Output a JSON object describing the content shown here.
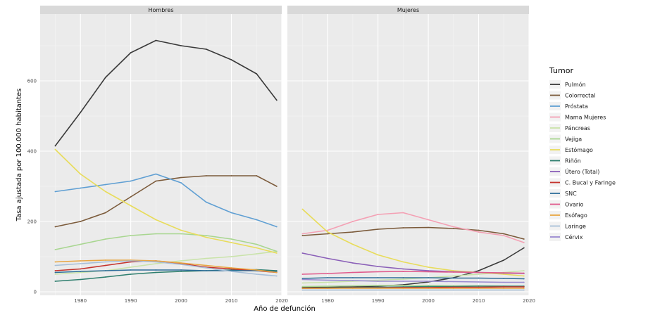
{
  "chart_data": {
    "type": "line",
    "xlabel": "Año de defunción",
    "ylabel": "Tasa ajustada por 100.000 habitantes",
    "xlim": [
      1972,
      2020
    ],
    "ylim": [
      -10,
      790
    ],
    "x_ticks": [
      1980,
      1990,
      2000,
      2010,
      2020
    ],
    "y_ticks": [
      0,
      200,
      400,
      600
    ],
    "grid": true,
    "legend_title": "Tumor",
    "legend_position": "right",
    "panels": [
      "Hombres",
      "Mujeres"
    ],
    "x": [
      1975,
      1980,
      1985,
      1990,
      1995,
      2000,
      2005,
      2010,
      2015,
      2019
    ],
    "series": [
      {
        "name": "Pulmón",
        "color": "#3a3a3a",
        "hombres": [
          415,
          510,
          610,
          680,
          715,
          700,
          690,
          660,
          620,
          545
        ],
        "mujeres": [
          13,
          13,
          14,
          16,
          20,
          28,
          40,
          60,
          90,
          125
        ]
      },
      {
        "name": "Colorrectal",
        "color": "#7b5a3a",
        "hombres": [
          185,
          200,
          225,
          270,
          315,
          325,
          330,
          330,
          330,
          300
        ],
        "mujeres": [
          160,
          165,
          170,
          178,
          182,
          183,
          180,
          175,
          165,
          150
        ]
      },
      {
        "name": "Próstata",
        "color": "#5f9fd3",
        "hombres": [
          285,
          295,
          305,
          315,
          335,
          310,
          255,
          225,
          205,
          185
        ],
        "mujeres": [
          null,
          null,
          null,
          null,
          null,
          null,
          null,
          null,
          null,
          null
        ]
      },
      {
        "name": "Mama Mujeres",
        "color": "#f4a0b4",
        "hombres": [
          null,
          null,
          null,
          null,
          null,
          null,
          null,
          null,
          null,
          null
        ],
        "mujeres": [
          165,
          175,
          200,
          220,
          225,
          205,
          185,
          170,
          160,
          140
        ]
      },
      {
        "name": "Páncreas",
        "color": "#c9e3a9",
        "hombres": [
          50,
          55,
          60,
          70,
          80,
          88,
          95,
          100,
          108,
          115
        ],
        "mujeres": [
          25,
          27,
          30,
          33,
          36,
          40,
          45,
          50,
          55,
          60
        ]
      },
      {
        "name": "Vejiga",
        "color": "#a8d690",
        "hombres": [
          120,
          135,
          150,
          160,
          165,
          165,
          160,
          150,
          135,
          115
        ],
        "mujeres": [
          15,
          16,
          17,
          18,
          18,
          18,
          17,
          17,
          16,
          15
        ]
      },
      {
        "name": "Estómago",
        "color": "#e8dc5a",
        "hombres": [
          405,
          335,
          285,
          245,
          205,
          175,
          155,
          140,
          125,
          110
        ],
        "mujeres": [
          235,
          170,
          135,
          105,
          85,
          70,
          60,
          55,
          50,
          45
        ]
      },
      {
        "name": "Riñón",
        "color": "#2e7e6e",
        "hombres": [
          30,
          35,
          42,
          50,
          55,
          58,
          60,
          62,
          63,
          60
        ],
        "mujeres": [
          10,
          11,
          12,
          13,
          14,
          15,
          15,
          16,
          16,
          16
        ]
      },
      {
        "name": "Útero (Total)",
        "color": "#8a5fb8",
        "hombres": [
          null,
          null,
          null,
          null,
          null,
          null,
          null,
          null,
          null,
          null
        ],
        "mujeres": [
          110,
          95,
          82,
          72,
          65,
          60,
          57,
          55,
          53,
          52
        ]
      },
      {
        "name": "C. Bucal y Faringe",
        "color": "#c4322c",
        "hombres": [
          60,
          65,
          75,
          85,
          88,
          80,
          70,
          65,
          60,
          55
        ],
        "mujeres": [
          10,
          10,
          11,
          11,
          12,
          12,
          13,
          13,
          14,
          14
        ]
      },
      {
        "name": "SNC",
        "color": "#2f6e9a",
        "hombres": [
          55,
          58,
          60,
          62,
          62,
          62,
          60,
          60,
          60,
          58
        ],
        "mujeres": [
          38,
          40,
          40,
          40,
          40,
          40,
          39,
          39,
          38,
          37
        ]
      },
      {
        "name": "Ovario",
        "color": "#e05a8c",
        "hombres": [
          null,
          null,
          null,
          null,
          null,
          null,
          null,
          null,
          null,
          null
        ],
        "mujeres": [
          50,
          52,
          55,
          57,
          58,
          57,
          56,
          55,
          54,
          53
        ]
      },
      {
        "name": "Esófago",
        "color": "#e8a642",
        "hombres": [
          85,
          88,
          90,
          90,
          88,
          82,
          75,
          68,
          62,
          55
        ],
        "mujeres": [
          10,
          10,
          10,
          10,
          10,
          10,
          10,
          10,
          10,
          10
        ]
      },
      {
        "name": "Laringe",
        "color": "#a7bfd8",
        "hombres": [
          75,
          80,
          85,
          88,
          85,
          78,
          68,
          58,
          50,
          45
        ],
        "mujeres": [
          5,
          5,
          5,
          5,
          5,
          5,
          5,
          5,
          5,
          5
        ]
      },
      {
        "name": "Cérvix",
        "color": "#9a8ad0",
        "hombres": [
          null,
          null,
          null,
          null,
          null,
          null,
          null,
          null,
          null,
          null
        ],
        "mujeres": [
          35,
          33,
          32,
          30,
          30,
          30,
          29,
          28,
          27,
          27
        ]
      }
    ]
  }
}
